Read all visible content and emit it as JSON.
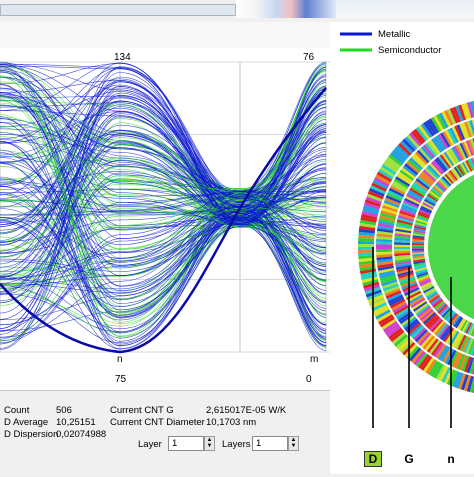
{
  "axes": {
    "top_labels": [
      "134",
      "76"
    ],
    "bottom_names": [
      "n",
      "m"
    ],
    "bottom_values": [
      "75",
      "0"
    ]
  },
  "legend": {
    "items": [
      {
        "label": "Metallic",
        "color": "#0a14d0"
      },
      {
        "label": "Semiconductor",
        "color": "#22d822"
      }
    ]
  },
  "info": {
    "count_label": "Count",
    "count_value": "506",
    "davg_label": "D Average",
    "davg_value": "10,25151",
    "ddisp_label": "D Dispersion",
    "ddisp_value": "0,02074988",
    "cntg_label": "Current CNT G",
    "cntg_value": "2,615017E-05 W/K",
    "cntd_label": "Current CNT Diameter",
    "cntd_value": "10,1703 nm",
    "layer_label": "Layer",
    "layer_value": "1",
    "layers_label": "Layers",
    "layers_value": "1"
  },
  "ring_labels": [
    "D",
    "G",
    "n"
  ],
  "colors": {
    "metallic": "#0a14d0",
    "semiconductor": "#22d822",
    "highlight": "#0a0aa8",
    "ring_d_bg": "#9ad42a"
  },
  "icons": [
    "spin-up-icon",
    "spin-down-icon"
  ]
}
